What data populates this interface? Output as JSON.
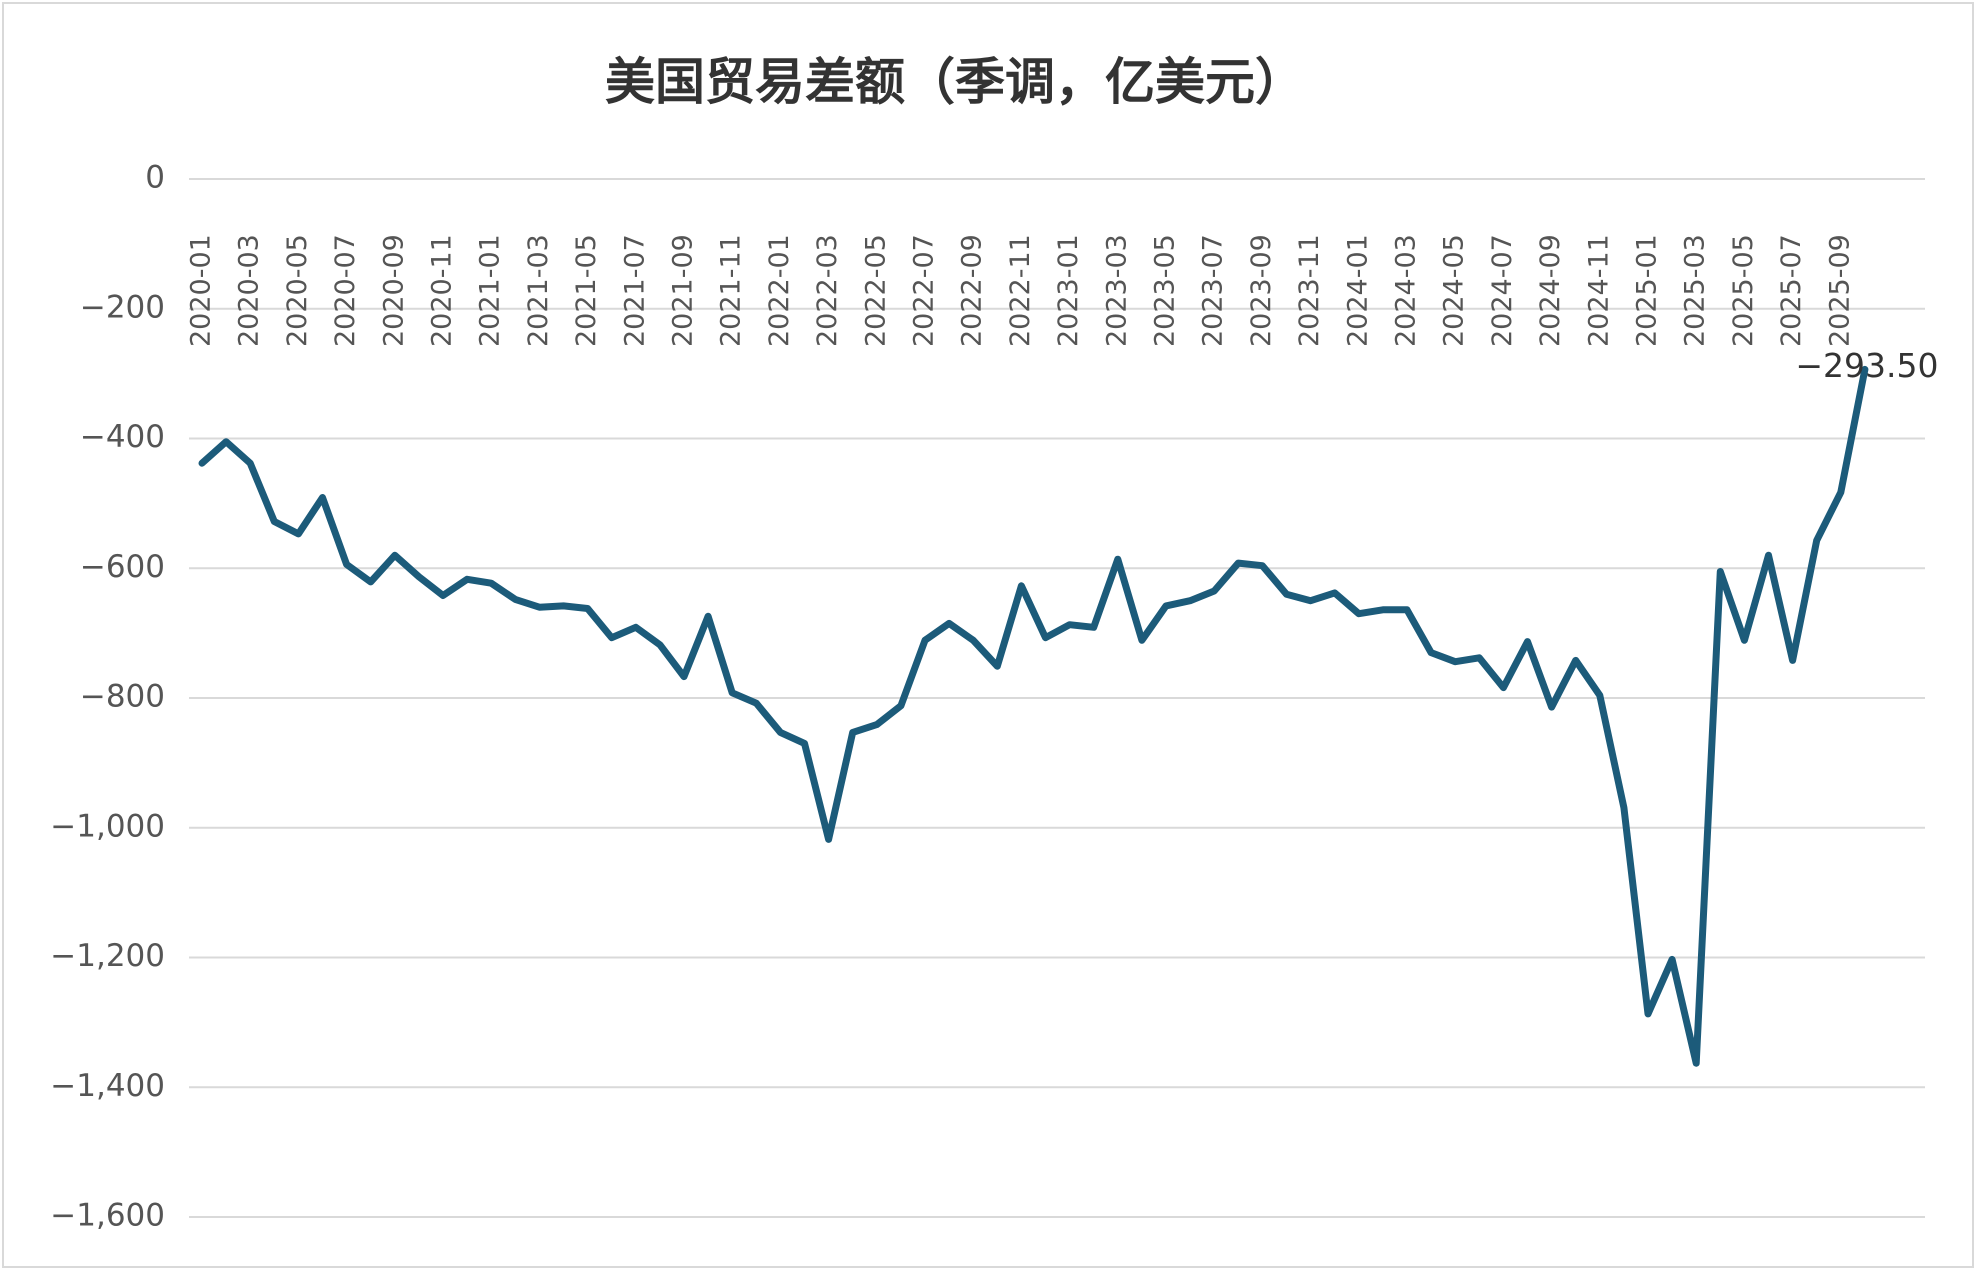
{
  "chart_data": {
    "type": "line",
    "title": "美国贸易差额（季调，亿美元）",
    "categories": [
      "2020-01",
      null,
      "2020-03",
      null,
      "2020-05",
      null,
      "2020-07",
      null,
      "2020-09",
      null,
      "2020-11",
      null,
      "2021-01",
      null,
      "2021-03",
      null,
      "2021-05",
      null,
      "2021-07",
      null,
      "2021-09",
      null,
      "2021-11",
      null,
      "2022-01",
      null,
      "2022-03",
      null,
      "2022-05",
      null,
      "2022-07",
      null,
      "2022-09",
      null,
      "2022-11",
      null,
      "2023-01",
      null,
      "2023-03",
      null,
      "2023-05",
      null,
      "2023-07",
      null,
      "2023-09",
      null,
      "2023-11",
      null,
      "2024-01",
      null,
      "2024-03",
      null,
      "2024-05",
      null,
      "2024-07",
      null,
      "2024-09",
      null,
      "2024-11",
      null,
      "2025-01",
      null,
      "2025-03",
      null,
      "2025-05",
      null,
      "2025-07",
      null,
      "2025-09",
      null
    ],
    "values": [
      -438,
      -405,
      -438,
      -528,
      -547,
      -491,
      -594,
      -621,
      -580,
      -613,
      -642,
      -617,
      -623,
      -648,
      -660,
      -658,
      -662,
      -707,
      -691,
      -718,
      -767,
      -674,
      -792,
      -808,
      -853,
      -870,
      -1018,
      -853,
      -841,
      -812,
      -711,
      -685,
      -711,
      -751,
      -627,
      -707,
      -687,
      -691,
      -586,
      -711,
      -658,
      -650,
      -635,
      -592,
      -596,
      -640,
      -650,
      -638,
      -670,
      -664,
      -664,
      -730,
      -744,
      -738,
      -784,
      -713,
      -814,
      -742,
      -796,
      -969,
      -1287,
      -1203,
      -1363,
      -605,
      -711,
      -580,
      -742,
      -557,
      -483,
      -293.5
    ],
    "value_labels": [
      null,
      null,
      null,
      null,
      null,
      null,
      null,
      null,
      null,
      null,
      null,
      null,
      null,
      null,
      null,
      null,
      null,
      null,
      null,
      null,
      null,
      null,
      null,
      null,
      null,
      null,
      null,
      null,
      null,
      null,
      null,
      null,
      null,
      null,
      null,
      null,
      null,
      null,
      null,
      null,
      null,
      null,
      null,
      null,
      null,
      null,
      null,
      null,
      null,
      null,
      null,
      null,
      null,
      null,
      null,
      null,
      null,
      null,
      null,
      null,
      null,
      null,
      null,
      null,
      null,
      null,
      null,
      null,
      null,
      "−293.50"
    ],
    "color": "#1c5b7a",
    "ylim": [
      -1600,
      0
    ],
    "yticks": [
      {
        "value": -1600,
        "label": "−1,600"
      },
      {
        "value": -1400,
        "label": "−1,400"
      },
      {
        "value": -1200,
        "label": "−1,200"
      },
      {
        "value": -1000,
        "label": "−1,000"
      },
      {
        "value": -800,
        "label": "−800"
      },
      {
        "value": -600,
        "label": "−600"
      },
      {
        "value": -400,
        "label": "−400"
      },
      {
        "value": -200,
        "label": "−200"
      },
      0
    ],
    "grid": true
  }
}
